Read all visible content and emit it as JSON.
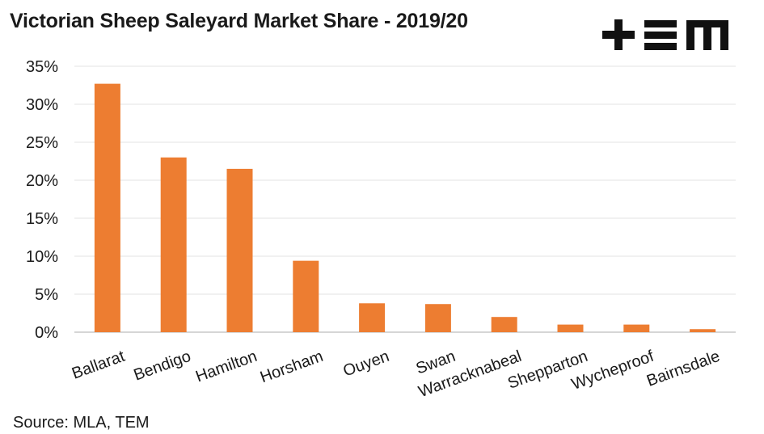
{
  "title": "Victorian Sheep Saleyard Market Share - 2019/20",
  "source": "Source: MLA, TEM",
  "logo": {
    "icon": "tem-logo-icon",
    "text": "+EM"
  },
  "colors": {
    "bar": "#ED7D31",
    "grid": "#E3E3E3",
    "axis": "#C8C8C8",
    "text": "#1A1A1A"
  },
  "chart_data": {
    "type": "bar",
    "title": "Victorian Sheep Saleyard Market Share - 2019/20",
    "xlabel": "",
    "ylabel": "",
    "categories": [
      "Ballarat",
      "Bendigo",
      "Hamilton",
      "Horsham",
      "Ouyen",
      "Swan",
      "Warracknabeal",
      "Shepparton",
      "Wycheproof",
      "Bairnsdale"
    ],
    "values": [
      32.7,
      23.0,
      21.5,
      9.4,
      3.8,
      3.7,
      2.0,
      1.0,
      1.0,
      0.4
    ],
    "ylim": [
      0,
      35
    ],
    "yticks": [
      0,
      5,
      10,
      15,
      20,
      25,
      30,
      35
    ],
    "ytick_labels": [
      "0%",
      "5%",
      "10%",
      "15%",
      "20%",
      "25%",
      "30%",
      "35%"
    ],
    "grid": true,
    "legend": "none"
  }
}
